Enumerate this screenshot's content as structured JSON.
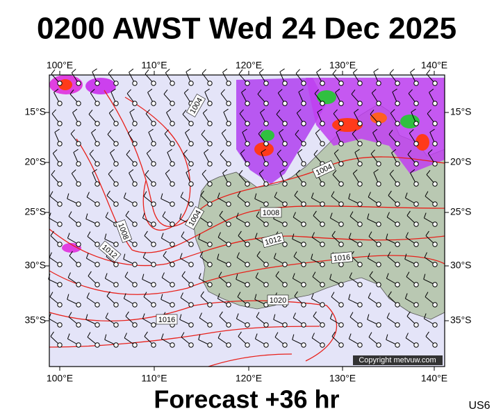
{
  "title": "0200 AWST Wed 24 Dec 2025",
  "top_axis": [
    "100°E",
    "110°E",
    "120°E",
    "130°E",
    "140°E"
  ],
  "bottom_axis": [
    "100°E",
    "110°E",
    "120°E",
    "130°E",
    "140°E"
  ],
  "left_axis": [
    "15°S",
    "20°S",
    "25°S",
    "30°S",
    "35°S"
  ],
  "right_axis": [
    "15°S",
    "20°S",
    "25°S",
    "30°S",
    "35°S"
  ],
  "isobar_labels": [
    "1004",
    "1004",
    "1004",
    "1008",
    "1008",
    "1012",
    "1012",
    "1016",
    "1016",
    "1020"
  ],
  "copyright": "Copyright metvuw.com",
  "footer": "Forecast +36 hr",
  "code": "US6"
}
